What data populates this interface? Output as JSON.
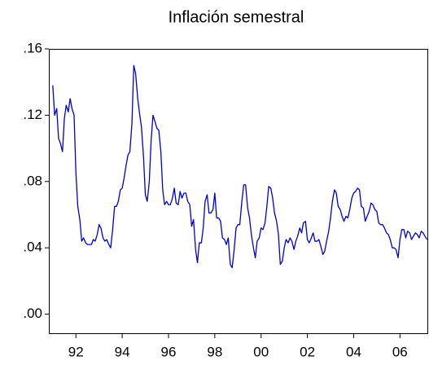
{
  "chart_data": {
    "type": "line",
    "title": "Inflación semestral",
    "color": "#0000cc",
    "x": [
      1991.5,
      1991.58,
      1991.67,
      1991.75,
      1991.83,
      1991.92,
      1992.0,
      1992.08,
      1992.17,
      1992.25,
      1992.33,
      1992.42,
      1992.5,
      1992.58,
      1992.67,
      1992.75,
      1992.83,
      1992.92,
      1993.0,
      1993.08,
      1993.17,
      1993.25,
      1993.33,
      1993.42,
      1993.5,
      1993.58,
      1993.67,
      1993.75,
      1993.83,
      1993.92,
      1994.0,
      1994.08,
      1994.17,
      1994.25,
      1994.33,
      1994.42,
      1994.5,
      1994.58,
      1994.67,
      1994.75,
      1994.83,
      1994.92,
      1995.0,
      1995.08,
      1995.17,
      1995.25,
      1995.33,
      1995.42,
      1995.5,
      1995.58,
      1995.67,
      1995.75,
      1995.83,
      1995.92,
      1996.0,
      1996.08,
      1996.17,
      1996.25,
      1996.33,
      1996.42,
      1996.5,
      1996.58,
      1996.67,
      1996.75,
      1996.83,
      1996.92,
      1997.0,
      1997.08,
      1997.17,
      1997.25,
      1997.33,
      1997.42,
      1997.5,
      1997.58,
      1997.67,
      1997.75,
      1997.83,
      1997.92,
      1998.0,
      1998.08,
      1998.17,
      1998.25,
      1998.33,
      1998.42,
      1998.5,
      1998.58,
      1998.67,
      1998.75,
      1998.83,
      1998.92,
      1999.0,
      1999.08,
      1999.17,
      1999.25,
      1999.33,
      1999.42,
      1999.5,
      1999.58,
      1999.67,
      1999.75,
      1999.83,
      1999.92,
      2000.0,
      2000.08,
      2000.17,
      2000.25,
      2000.33,
      2000.42,
      2000.5,
      2000.58,
      2000.67,
      2000.75,
      2000.83,
      2000.92,
      2001.0,
      2001.08,
      2001.17,
      2001.25,
      2001.33,
      2001.42,
      2001.5,
      2001.58,
      2001.67,
      2001.75,
      2001.83,
      2001.92,
      2002.0,
      2002.08,
      2002.17,
      2002.25,
      2002.33,
      2002.42,
      2002.5,
      2002.58,
      2002.67,
      2002.75,
      2002.83,
      2002.92,
      2003.0,
      2003.08,
      2003.17,
      2003.25,
      2003.33,
      2003.42,
      2003.5,
      2003.58,
      2003.67,
      2003.75,
      2003.83,
      2003.92,
      2004.0,
      2004.08,
      2004.17,
      2004.25,
      2004.33,
      2004.42,
      2004.5,
      2004.58,
      2004.67,
      2004.75,
      2004.83,
      2004.92,
      2005.0,
      2005.08,
      2005.17,
      2005.25,
      2005.33,
      2005.42,
      2005.5,
      2005.58,
      2005.67,
      2005.75,
      2005.83,
      2005.92,
      2006.0,
      2006.08,
      2006.17,
      2006.25,
      2006.33,
      2006.42,
      2006.5,
      2006.58,
      2006.67,
      2006.75,
      2006.83,
      2006.92,
      2007.0,
      2007.08,
      2007.17,
      2007.25,
      2007.33,
      2007.42,
      2007.5,
      2007.58,
      2007.67
    ],
    "values": [
      0.138,
      0.12,
      0.124,
      0.106,
      0.103,
      0.098,
      0.118,
      0.126,
      0.122,
      0.13,
      0.124,
      0.12,
      0.085,
      0.065,
      0.057,
      0.044,
      0.046,
      0.043,
      0.042,
      0.042,
      0.042,
      0.045,
      0.044,
      0.048,
      0.054,
      0.052,
      0.046,
      0.044,
      0.045,
      0.042,
      0.04,
      0.05,
      0.065,
      0.065,
      0.068,
      0.075,
      0.076,
      0.082,
      0.09,
      0.096,
      0.098,
      0.115,
      0.15,
      0.145,
      0.13,
      0.121,
      0.113,
      0.095,
      0.072,
      0.068,
      0.08,
      0.105,
      0.12,
      0.116,
      0.112,
      0.111,
      0.098,
      0.075,
      0.066,
      0.068,
      0.066,
      0.066,
      0.07,
      0.076,
      0.067,
      0.066,
      0.074,
      0.07,
      0.073,
      0.073,
      0.068,
      0.066,
      0.053,
      0.057,
      0.039,
      0.031,
      0.043,
      0.043,
      0.052,
      0.068,
      0.072,
      0.061,
      0.061,
      0.063,
      0.073,
      0.058,
      0.058,
      0.056,
      0.046,
      0.045,
      0.042,
      0.046,
      0.03,
      0.028,
      0.038,
      0.052,
      0.054,
      0.054,
      0.068,
      0.078,
      0.078,
      0.064,
      0.058,
      0.048,
      0.04,
      0.034,
      0.044,
      0.046,
      0.052,
      0.051,
      0.055,
      0.065,
      0.077,
      0.076,
      0.07,
      0.061,
      0.056,
      0.048,
      0.03,
      0.032,
      0.04,
      0.045,
      0.043,
      0.046,
      0.044,
      0.039,
      0.044,
      0.047,
      0.052,
      0.049,
      0.055,
      0.056,
      0.045,
      0.043,
      0.046,
      0.049,
      0.044,
      0.044,
      0.045,
      0.041,
      0.036,
      0.038,
      0.044,
      0.05,
      0.058,
      0.068,
      0.075,
      0.073,
      0.065,
      0.063,
      0.059,
      0.056,
      0.059,
      0.058,
      0.063,
      0.07,
      0.073,
      0.074,
      0.076,
      0.075,
      0.065,
      0.064,
      0.056,
      0.059,
      0.062,
      0.067,
      0.066,
      0.063,
      0.062,
      0.055,
      0.054,
      0.054,
      0.052,
      0.049,
      0.048,
      0.045,
      0.04,
      0.04,
      0.039,
      0.034,
      0.045,
      0.051,
      0.051,
      0.046,
      0.05,
      0.049,
      0.045,
      0.047,
      0.049,
      0.048,
      0.046,
      0.05,
      0.049,
      0.047,
      0.045
    ],
    "xlim": [
      1991.33,
      2007.72
    ],
    "xticks": [
      {
        "value": 1992.5,
        "label": "92"
      },
      {
        "value": 1994.5,
        "label": "94"
      },
      {
        "value": 1996.5,
        "label": "96"
      },
      {
        "value": 1998.5,
        "label": "98"
      },
      {
        "value": 2000.5,
        "label": "00"
      },
      {
        "value": 2002.5,
        "label": "02"
      },
      {
        "value": 2004.5,
        "label": "04"
      },
      {
        "value": 2006.5,
        "label": "06"
      }
    ],
    "ylim": [
      -0.012,
      0.16
    ],
    "yticks": [
      {
        "value": 0,
        "label": ".00"
      },
      {
        "value": 0.04,
        "label": ".04"
      },
      {
        "value": 0.08,
        "label": ".08"
      },
      {
        "value": 0.12,
        "label": ".12"
      },
      {
        "value": 0.16,
        "label": ".16"
      }
    ]
  }
}
